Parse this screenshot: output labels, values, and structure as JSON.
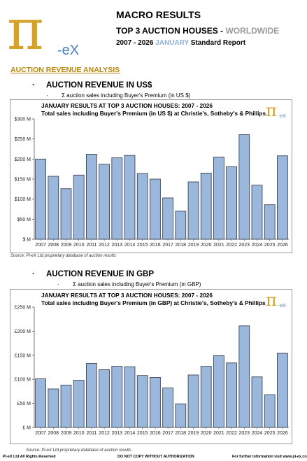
{
  "header": {
    "title": "MACRO RESULTS",
    "subtitle_main": "TOP 3 AUCTION HOUSES -",
    "subtitle_accent": "WORLDWIDE",
    "report_years": "2007 - 2026",
    "report_month": "JANUARY",
    "report_type": "Standard Report"
  },
  "logo": {
    "symbol": "π",
    "text": "-eX"
  },
  "section_label": "AUCTION REVENUE ANALYSIS",
  "usd": {
    "bullet": "·",
    "heading": "AUCTION REVENUE IN US$",
    "sub_bullet": "·",
    "sub_heading": "Σ auction sales including Buyer's Premium (in US $)",
    "box_title_1": "JANUARY RESULTS AT TOP 3 AUCTION HOUSES: 2007 - 2026",
    "box_title_2": "Total sales including Buyer's Premium (in US $) at Christie's, Sotheby's & Phillips",
    "source": "Source:  Pi-eX Ltd proprietary database of auction results"
  },
  "gbp": {
    "bullet": "·",
    "heading": "AUCTION REVENUE IN GBP",
    "sub_bullet": "·",
    "sub_heading": "Σ auction sales including Buyer's Premium (in GBP)",
    "box_title_1": "JANUARY RESULTS AT TOP 3 AUCTION HOUSES: 2007 - 2026",
    "box_title_2": "Total sales including Buyer's Premium (in GBP) at Christie's, Sotheby's & Phillips",
    "source": "Source:  Pi-eX Ltd proprietary database of auction results"
  },
  "footer": {
    "left": "Pi-eX Ltd All Rights Reserved",
    "center": "DO NOT COPY WITHOUT AUTHORIZATION",
    "right": "For further information visit www.pi-ex.co"
  },
  "colors": {
    "bar_fill": "#9bb7dc",
    "bar_stroke": "#2e3440",
    "logo_gold": "#d4a12b",
    "logo_blue": "#4a7fc1"
  },
  "chart_data": [
    {
      "type": "bar",
      "categories": [
        "2007",
        "2008",
        "2009",
        "2010",
        "2011",
        "2012",
        "2013",
        "2014",
        "2015",
        "2016",
        "2017",
        "2018",
        "2019",
        "2020",
        "2021",
        "2022",
        "2023",
        "2024",
        "2025",
        "2026"
      ],
      "values": [
        200,
        157,
        126,
        160,
        212,
        187,
        203,
        209,
        164,
        150,
        103,
        70,
        143,
        165,
        205,
        181,
        261,
        135,
        86,
        208
      ],
      "ylim": [
        0,
        300
      ],
      "yticks": [
        0,
        50,
        100,
        150,
        200,
        250,
        300
      ],
      "ytick_labels": [
        "$ M",
        "$50 M",
        "$100 M",
        "$150 M",
        "$200 M",
        "$250 M",
        "$300 M"
      ],
      "grid": false
    },
    {
      "type": "bar",
      "categories": [
        "2007",
        "2008",
        "2009",
        "2010",
        "2011",
        "2012",
        "2013",
        "2014",
        "2015",
        "2016",
        "2017",
        "2018",
        "2019",
        "2020",
        "2021",
        "2022",
        "2023",
        "2024",
        "2025",
        "2026"
      ],
      "values": [
        101,
        80,
        88,
        98,
        133,
        120,
        127,
        126,
        108,
        104,
        82,
        49,
        109,
        127,
        149,
        134,
        211,
        105,
        68,
        154
      ],
      "ylim": [
        0,
        250
      ],
      "yticks": [
        0,
        50,
        100,
        150,
        200,
        250
      ],
      "ytick_labels": [
        "£ M",
        "£50 M",
        "£100 M",
        "£150 M",
        "£200 M",
        "£250 M"
      ],
      "grid": false
    }
  ]
}
